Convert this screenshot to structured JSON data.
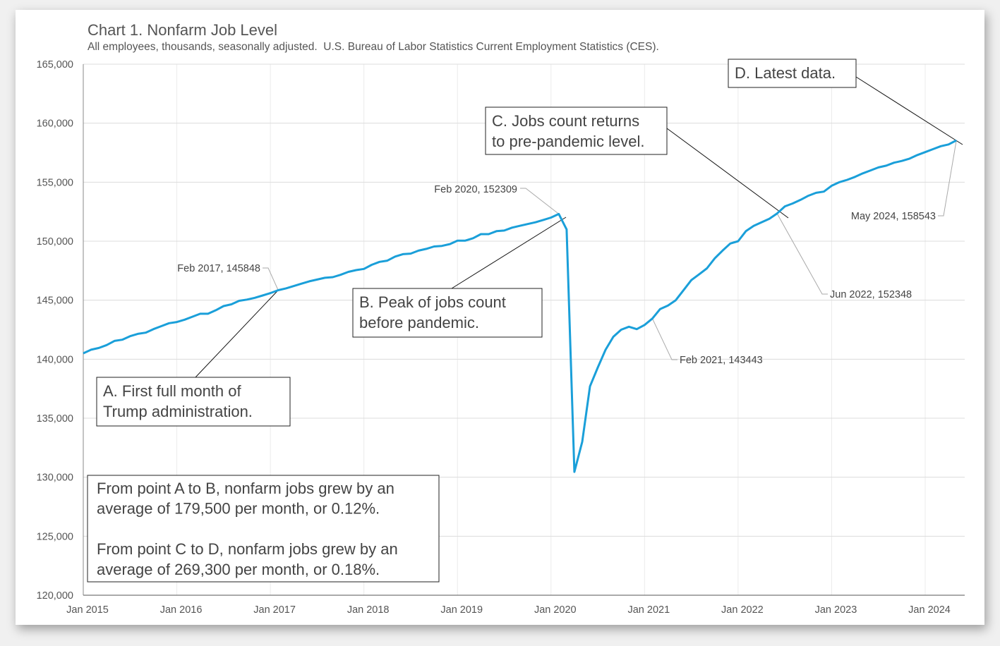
{
  "chart_data": {
    "type": "line",
    "title": "Chart 1. Nonfarm Job Level",
    "subtitle": "All employees, thousands, seasonally adjusted.  U.S. Bureau of Labor Statistics Current Employment Statistics (CES).",
    "xlabel": "",
    "ylabel": "",
    "ylim": [
      120000,
      165000
    ],
    "x_start": "Jan 2015",
    "x_end": "May 2024",
    "grid": true,
    "legend": "none",
    "line_color": "#1a9fd9",
    "y_ticks": [
      "120,000",
      "125,000",
      "130,000",
      "135,000",
      "140,000",
      "145,000",
      "150,000",
      "155,000",
      "160,000",
      "165,000"
    ],
    "y_tick_values": [
      120000,
      125000,
      130000,
      135000,
      140000,
      145000,
      150000,
      155000,
      160000,
      165000
    ],
    "x_ticks": [
      "Jan 2015",
      "Jan 2016",
      "Jan 2017",
      "Jan 2018",
      "Jan 2019",
      "Jan 2020",
      "Jan 2021",
      "Jan 2022",
      "Jan 2023",
      "Jan 2024"
    ],
    "x_tick_months": [
      0,
      12,
      24,
      36,
      48,
      60,
      72,
      84,
      96,
      108
    ],
    "series": [
      {
        "name": "All employees, thousands",
        "values": [
          140500,
          140800,
          140950,
          141200,
          141550,
          141650,
          141950,
          142150,
          142250,
          142550,
          142800,
          143050,
          143150,
          143350,
          143600,
          143850,
          143850,
          144150,
          144500,
          144650,
          144950,
          145050,
          145200,
          145400,
          145600,
          145848,
          146000,
          146200,
          146400,
          146600,
          146750,
          146900,
          146950,
          147150,
          147400,
          147550,
          147650,
          148000,
          148250,
          148350,
          148700,
          148900,
          148950,
          149200,
          149350,
          149550,
          149600,
          149750,
          150050,
          150050,
          150250,
          150600,
          150600,
          150850,
          150900,
          151150,
          151300,
          151450,
          151600,
          151800,
          152000,
          152309,
          151000,
          130450,
          133000,
          137700,
          139300,
          140800,
          141900,
          142500,
          142750,
          142550,
          142900,
          143443,
          144250,
          144550,
          145000,
          145850,
          146700,
          147200,
          147700,
          148550,
          149200,
          149800,
          150000,
          150850,
          151300,
          151600,
          151900,
          152348,
          152950,
          153200,
          153500,
          153850,
          154100,
          154200,
          154700,
          155000,
          155200,
          155450,
          155750,
          156000,
          156250,
          156400,
          156650,
          156800,
          157000,
          157300,
          157550,
          157800,
          158050,
          158200,
          158543
        ]
      }
    ],
    "data_labels": [
      {
        "id": "feb2017",
        "text": "Feb 2017, 145848",
        "month_index": 25,
        "value": 145848
      },
      {
        "id": "feb2020",
        "text": "Feb 2020, 152309",
        "month_index": 61,
        "value": 152309
      },
      {
        "id": "feb2021",
        "text": "Feb 2021, 143443",
        "month_index": 73,
        "value": 143443
      },
      {
        "id": "jun2022",
        "text": "Jun 2022, 152348",
        "month_index": 89,
        "value": 152348
      },
      {
        "id": "may2024",
        "text": "May 2024, 158543",
        "month_index": 112,
        "value": 158543
      }
    ],
    "annotations": [
      {
        "id": "a",
        "lines": [
          "A. First full month of",
          "Trump administration."
        ]
      },
      {
        "id": "b",
        "lines": [
          "B. Peak of jobs count",
          "before pandemic."
        ]
      },
      {
        "id": "c",
        "lines": [
          "C. Jobs count returns",
          "to pre-pandemic level."
        ]
      },
      {
        "id": "d",
        "lines": [
          "D. Latest data."
        ]
      }
    ],
    "summary_note": {
      "lines": [
        "From point A to B, nonfarm jobs grew by an",
        "average of 179,500 per month, or 0.12%.",
        "",
        "From point C to D, nonfarm jobs grew by an",
        "average of 269,300 per month, or 0.18%."
      ]
    }
  }
}
